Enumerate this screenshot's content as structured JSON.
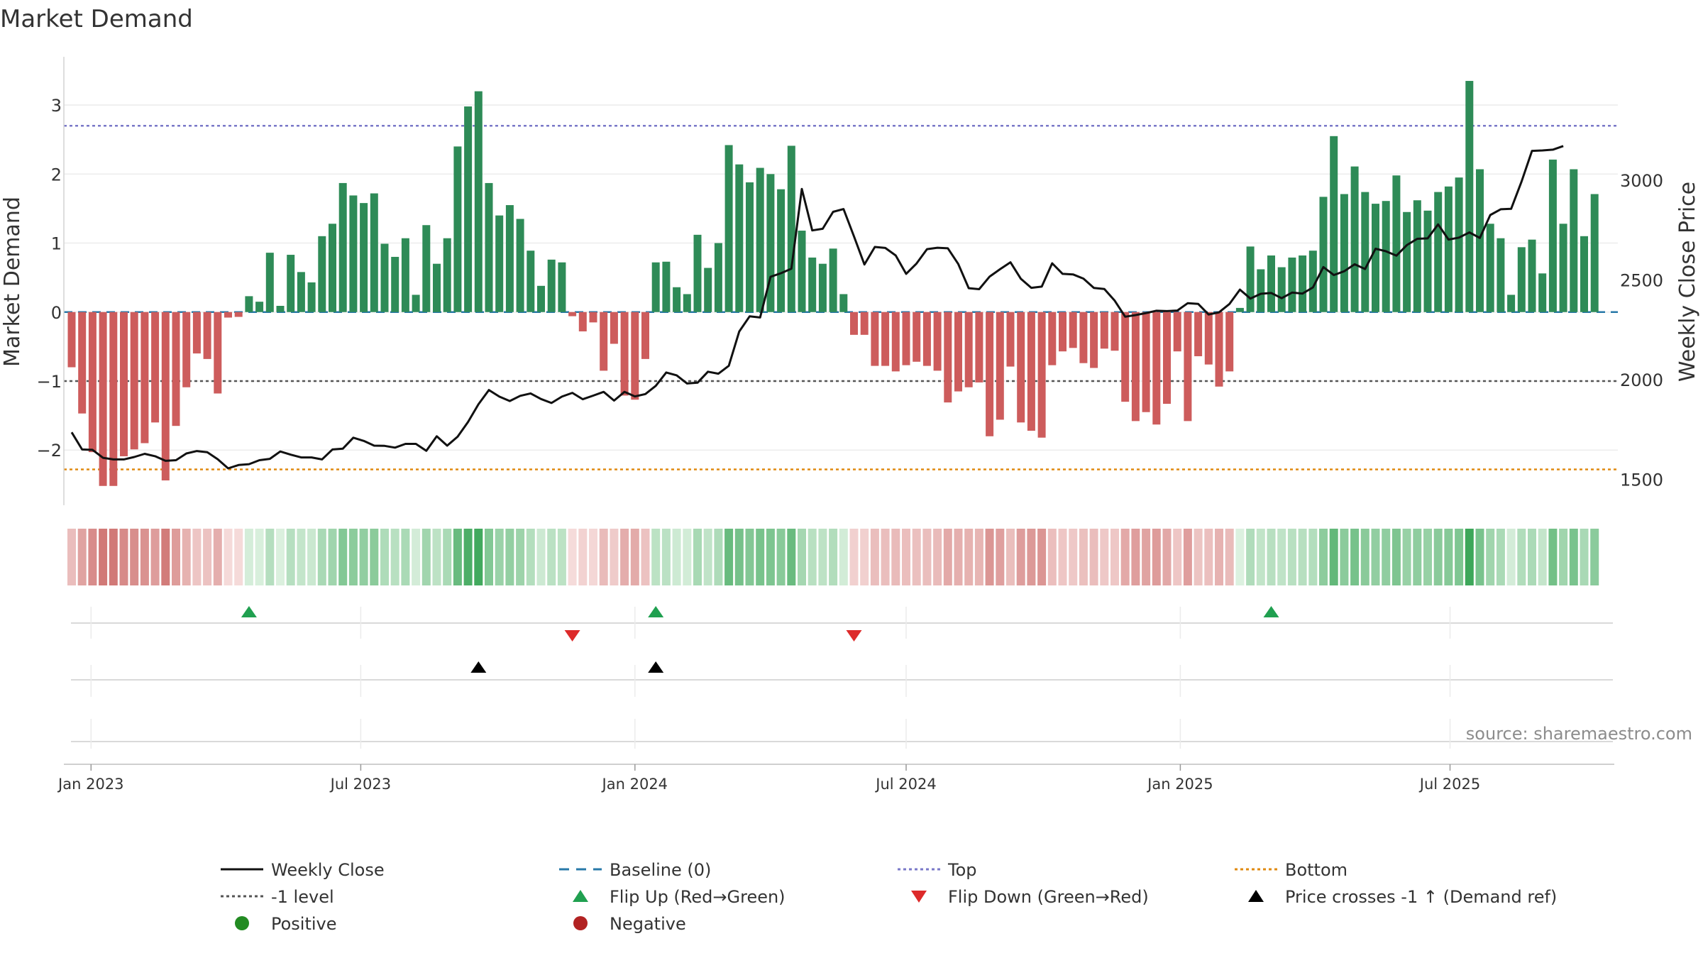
{
  "chart_data": {
    "type": "bar",
    "title": "Market Demand",
    "ylabel": "Market Demand",
    "y2label": "Weekly Close Price",
    "ylim": [
      -2.8,
      3.7
    ],
    "yticks": [
      -2,
      -1,
      0,
      1,
      2,
      3
    ],
    "yticklabels": [
      "−2",
      "−1",
      "0",
      "1",
      "2",
      "3"
    ],
    "y2lim": [
      1370,
      3620
    ],
    "y2ticks": [
      1500,
      2000,
      2500,
      3000
    ],
    "y2ticklabels": [
      "1500",
      "2000",
      "2500",
      "3000"
    ],
    "start_date": "2022-12-19",
    "end_date": "2025-09-30",
    "date_ticks": [
      {
        "date": "2023-01-01",
        "label": "Jan 2023"
      },
      {
        "date": "2023-07-01",
        "label": "Jul 2023"
      },
      {
        "date": "2024-01-01",
        "label": "Jan 2024"
      },
      {
        "date": "2024-07-01",
        "label": "Jul 2024"
      },
      {
        "date": "2025-01-01",
        "label": "Jan 2025"
      },
      {
        "date": "2025-07-01",
        "label": "Jul 2025"
      }
    ],
    "grid": true,
    "reference_lines": {
      "top": 2.7,
      "bottom": -2.28,
      "minus_one": -1,
      "baseline": 0
    },
    "demand": [
      -0.8,
      -1.47,
      -2.03,
      -2.52,
      -2.52,
      -2.09,
      -1.99,
      -1.9,
      -1.6,
      -2.44,
      -1.65,
      -1.09,
      -0.6,
      -0.68,
      -1.18,
      -0.08,
      -0.07,
      0.23,
      0.15,
      0.86,
      0.09,
      0.83,
      0.58,
      0.43,
      1.1,
      1.28,
      1.87,
      1.69,
      1.58,
      1.72,
      0.99,
      0.8,
      1.07,
      0.25,
      1.26,
      0.7,
      1.07,
      2.4,
      2.98,
      3.2,
      1.87,
      1.4,
      1.55,
      1.35,
      0.89,
      0.38,
      0.76,
      0.72,
      -0.06,
      -0.28,
      -0.15,
      -0.85,
      -0.46,
      -1.21,
      -1.27,
      -0.68,
      0.72,
      0.73,
      0.36,
      0.26,
      1.12,
      0.64,
      1.0,
      2.42,
      2.14,
      1.88,
      2.09,
      2.0,
      1.78,
      2.41,
      1.18,
      0.79,
      0.7,
      0.92,
      0.26,
      -0.33,
      -0.33,
      -0.78,
      -0.78,
      -0.86,
      -0.77,
      -0.72,
      -0.78,
      -0.85,
      -1.31,
      -1.15,
      -1.09,
      -1.02,
      -1.8,
      -1.56,
      -0.79,
      -1.6,
      -1.72,
      -1.82,
      -0.77,
      -0.57,
      -0.52,
      -0.74,
      -0.81,
      -0.53,
      -0.56,
      -1.3,
      -1.58,
      -1.45,
      -1.63,
      -1.33,
      -0.57,
      -1.58,
      -0.64,
      -0.76,
      -1.08,
      -0.86,
      0.06,
      0.95,
      0.62,
      0.82,
      0.65,
      0.79,
      0.82,
      0.89,
      1.67,
      2.55,
      1.71,
      2.11,
      1.74,
      1.57,
      1.61,
      1.98,
      1.45,
      1.62,
      1.47,
      1.74,
      1.82,
      1.95,
      3.35,
      2.07,
      1.28,
      1.07,
      0.25,
      0.94,
      1.05,
      0.56,
      2.21,
      1.28,
      2.07,
      1.1,
      1.71
    ],
    "price": [
      1736,
      1650,
      1648,
      1608,
      1600,
      1600,
      1612,
      1628,
      1616,
      1593,
      1596,
      1630,
      1642,
      1636,
      1601,
      1555,
      1572,
      1576,
      1596,
      1603,
      1640,
      1624,
      1610,
      1610,
      1600,
      1650,
      1654,
      1709,
      1693,
      1669,
      1668,
      1659,
      1678,
      1678,
      1643,
      1716,
      1669,
      1714,
      1788,
      1877,
      1948,
      1915,
      1893,
      1919,
      1931,
      1903,
      1883,
      1915,
      1934,
      1902,
      1920,
      1939,
      1895,
      1939,
      1916,
      1928,
      1969,
      2036,
      2022,
      1981,
      1985,
      2040,
      2030,
      2070,
      2242,
      2318,
      2312,
      2516,
      2534,
      2557,
      2957,
      2749,
      2757,
      2842,
      2856,
      2719,
      2578,
      2666,
      2661,
      2623,
      2531,
      2583,
      2655,
      2662,
      2659,
      2580,
      2459,
      2454,
      2517,
      2554,
      2589,
      2506,
      2461,
      2467,
      2584,
      2531,
      2528,
      2507,
      2460,
      2455,
      2396,
      2316,
      2324,
      2334,
      2346,
      2344,
      2347,
      2384,
      2380,
      2327,
      2338,
      2380,
      2452,
      2407,
      2431,
      2435,
      2409,
      2437,
      2432,
      2463,
      2565,
      2525,
      2544,
      2579,
      2555,
      2657,
      2644,
      2622,
      2675,
      2707,
      2709,
      2779,
      2703,
      2713,
      2739,
      2711,
      2826,
      2855,
      2857,
      2994,
      3148,
      3150,
      3154,
      3172
    ],
    "series": [
      {
        "name": "Weekly Close",
        "color": "#111111"
      },
      {
        "name": "Baseline (0)",
        "color": "#2878a8"
      },
      {
        "name": "Top",
        "color": "#7a78c8"
      },
      {
        "name": "Bottom",
        "color": "#e08a10"
      },
      {
        "name": "-1 level",
        "color": "#555555"
      },
      {
        "name": "Positive",
        "color": "#2e8b57"
      },
      {
        "name": "Negative",
        "color": "#cd5c5c"
      }
    ],
    "flip_up_weeks": [
      17,
      56,
      115
    ],
    "flip_down_weeks": [
      48,
      75
    ],
    "price_cross_weeks": [
      39,
      56
    ]
  },
  "legend": {
    "items": [
      {
        "label": "Weekly Close",
        "symbol": "line",
        "color": "#111111"
      },
      {
        "label": "Baseline (0)",
        "symbol": "dash",
        "color": "#2878a8"
      },
      {
        "label": "Top",
        "symbol": "dot",
        "color": "#7a78c8"
      },
      {
        "label": "Bottom",
        "symbol": "dot",
        "color": "#e08a10"
      },
      {
        "label": "-1 level",
        "symbol": "dot",
        "color": "#555555"
      },
      {
        "label": "Flip Up (Red→Green)",
        "symbol": "triangle-up",
        "color": "#20a050"
      },
      {
        "label": "Flip Down (Green→Red)",
        "symbol": "triangle-down",
        "color": "#dd2a2a"
      },
      {
        "label": "Price crosses -1 ↑ (Demand ref)",
        "symbol": "triangle-up",
        "color": "#000000"
      },
      {
        "label": "Positive",
        "symbol": "circle",
        "color": "#228b22"
      },
      {
        "label": "Negative",
        "symbol": "circle",
        "color": "#b22222"
      }
    ]
  },
  "source": "source: sharemaestro.com"
}
